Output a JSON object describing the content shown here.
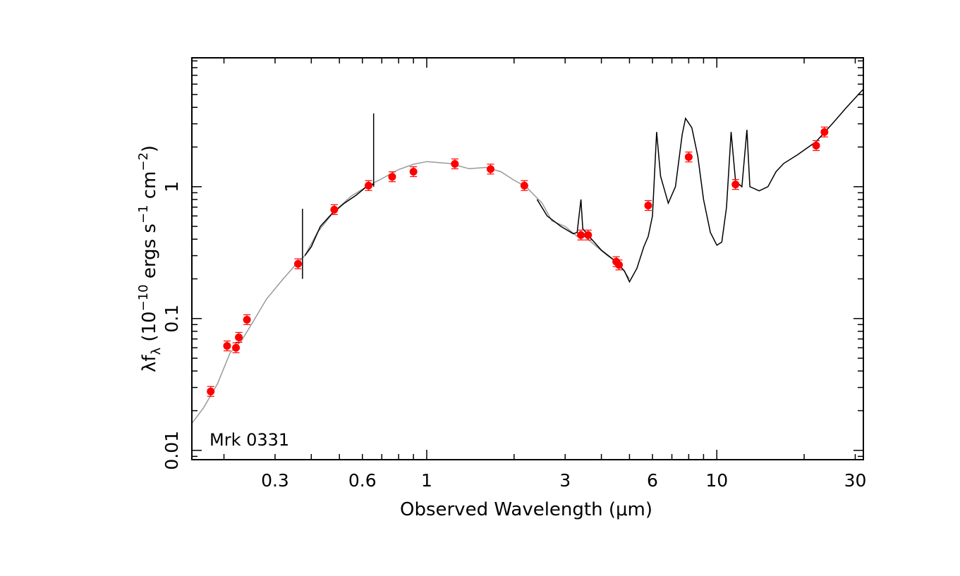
{
  "chart_data": {
    "type": "scatter",
    "xscale": "log",
    "yscale": "log",
    "xlim": [
      0.155,
      32
    ],
    "ylim": [
      0.0085,
      9.5
    ],
    "xlabel": "Observed Wavelength (μm)",
    "ylabel_parts": {
      "a": "λf",
      "a_sub": "λ",
      "b": " (10",
      "b_sup": "−10",
      "c": " ergs s",
      "c_sup": "−1",
      "d": " cm",
      "d_sup": "−2",
      "e": ")"
    },
    "xticks": [
      {
        "value": 0.3,
        "label": "0.3"
      },
      {
        "value": 0.6,
        "label": "0.6"
      },
      {
        "value": 1,
        "label": "1"
      },
      {
        "value": 3,
        "label": "3"
      },
      {
        "value": 6,
        "label": "6"
      },
      {
        "value": 10,
        "label": "10"
      },
      {
        "value": 30,
        "label": "30"
      }
    ],
    "yticks": [
      {
        "value": 0.01,
        "label": "0.01"
      },
      {
        "value": 0.1,
        "label": "0.1"
      },
      {
        "value": 1,
        "label": "1"
      }
    ],
    "annotation": "Mrk 0331",
    "colors": {
      "points": "#ff0000",
      "model": "#999999",
      "observed": "#000000"
    },
    "photometry": [
      {
        "x": 0.18,
        "y": 0.028
      },
      {
        "x": 0.205,
        "y": 0.062
      },
      {
        "x": 0.22,
        "y": 0.06
      },
      {
        "x": 0.225,
        "y": 0.072
      },
      {
        "x": 0.24,
        "y": 0.098
      },
      {
        "x": 0.36,
        "y": 0.26
      },
      {
        "x": 0.48,
        "y": 0.67
      },
      {
        "x": 0.63,
        "y": 1.02
      },
      {
        "x": 0.76,
        "y": 1.19
      },
      {
        "x": 0.9,
        "y": 1.3
      },
      {
        "x": 1.25,
        "y": 1.49
      },
      {
        "x": 1.66,
        "y": 1.36
      },
      {
        "x": 2.17,
        "y": 1.02
      },
      {
        "x": 3.4,
        "y": 0.43
      },
      {
        "x": 3.6,
        "y": 0.43
      },
      {
        "x": 4.5,
        "y": 0.27
      },
      {
        "x": 4.6,
        "y": 0.255
      },
      {
        "x": 5.8,
        "y": 0.72
      },
      {
        "x": 8.0,
        "y": 1.68
      },
      {
        "x": 11.6,
        "y": 1.04
      },
      {
        "x": 22,
        "y": 2.05
      },
      {
        "x": 23.5,
        "y": 2.6
      }
    ],
    "model_curve": [
      [
        0.155,
        0.016
      ],
      [
        0.17,
        0.021
      ],
      [
        0.19,
        0.032
      ],
      [
        0.21,
        0.055
      ],
      [
        0.23,
        0.068
      ],
      [
        0.25,
        0.092
      ],
      [
        0.28,
        0.14
      ],
      [
        0.32,
        0.2
      ],
      [
        0.35,
        0.25
      ],
      [
        0.38,
        0.3
      ],
      [
        0.42,
        0.45
      ],
      [
        0.48,
        0.65
      ],
      [
        0.55,
        0.85
      ],
      [
        0.63,
        1.02
      ],
      [
        0.7,
        1.15
      ],
      [
        0.8,
        1.35
      ],
      [
        0.9,
        1.48
      ],
      [
        1.0,
        1.55
      ],
      [
        1.2,
        1.5
      ],
      [
        1.4,
        1.37
      ],
      [
        1.6,
        1.4
      ],
      [
        1.8,
        1.3
      ],
      [
        2.0,
        1.12
      ],
      [
        2.2,
        1.0
      ],
      [
        2.5,
        0.75
      ],
      [
        2.7,
        0.55
      ],
      [
        3.0,
        0.5
      ],
      [
        3.3,
        0.42
      ],
      [
        3.5,
        0.42
      ],
      [
        3.8,
        0.36
      ],
      [
        4.2,
        0.3
      ],
      [
        4.6,
        0.26
      ],
      [
        5.0,
        0.2
      ]
    ],
    "observed_curve": [
      [
        0.38,
        0.3
      ],
      [
        0.4,
        0.35
      ],
      [
        0.43,
        0.5
      ],
      [
        0.47,
        0.62
      ],
      [
        0.52,
        0.75
      ],
      [
        0.57,
        0.86
      ],
      [
        0.62,
        1.0
      ],
      [
        0.66,
        1.05
      ],
      [
        2.4,
        0.8
      ],
      [
        2.6,
        0.6
      ],
      [
        2.9,
        0.5
      ],
      [
        3.2,
        0.44
      ],
      [
        3.3,
        0.45
      ],
      [
        3.4,
        0.8
      ],
      [
        3.45,
        0.48
      ],
      [
        3.7,
        0.4
      ],
      [
        4.0,
        0.33
      ],
      [
        4.4,
        0.28
      ],
      [
        4.8,
        0.23
      ],
      [
        5.0,
        0.19
      ],
      [
        5.3,
        0.24
      ],
      [
        5.6,
        0.35
      ],
      [
        5.8,
        0.42
      ],
      [
        6.0,
        0.6
      ],
      [
        6.2,
        2.6
      ],
      [
        6.4,
        1.2
      ],
      [
        6.8,
        0.75
      ],
      [
        7.2,
        1.0
      ],
      [
        7.6,
        2.5
      ],
      [
        7.8,
        3.3
      ],
      [
        8.2,
        2.8
      ],
      [
        8.6,
        1.7
      ],
      [
        9.0,
        0.8
      ],
      [
        9.5,
        0.45
      ],
      [
        10.0,
        0.36
      ],
      [
        10.4,
        0.38
      ],
      [
        10.8,
        0.7
      ],
      [
        11.2,
        2.6
      ],
      [
        11.6,
        1.1
      ],
      [
        12.2,
        1.0
      ],
      [
        12.7,
        2.7
      ],
      [
        13.0,
        1.0
      ],
      [
        14.0,
        0.93
      ],
      [
        15.0,
        1.0
      ],
      [
        16.0,
        1.3
      ],
      [
        17.0,
        1.5
      ],
      [
        19.0,
        1.75
      ],
      [
        22.0,
        2.2
      ],
      [
        25.0,
        3.0
      ],
      [
        28.0,
        4.0
      ],
      [
        32.0,
        5.5
      ]
    ],
    "emission_lines": [
      {
        "x": 0.373,
        "y_top": 0.68,
        "y_bottom": 0.2
      },
      {
        "x": 0.656,
        "y_top": 3.6,
        "y_bottom": 1.0
      }
    ]
  }
}
